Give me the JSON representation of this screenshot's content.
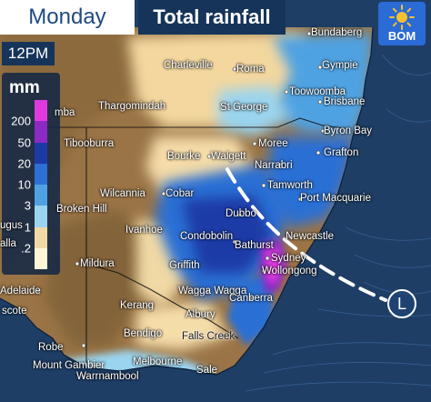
{
  "header": {
    "day": "Monday",
    "title": "Total rainfall",
    "time": "12PM"
  },
  "logo": {
    "text": "BOM",
    "icon": "sun-icon"
  },
  "legend": {
    "unit": "mm",
    "ticks": [
      "200",
      "50",
      "20",
      "10",
      "3",
      "1",
      ".2"
    ],
    "colors": [
      "#e03adf",
      "#8c2bc3",
      "#1c3aa6",
      "#2c70d4",
      "#4fa2e2",
      "#9ad4ef",
      "#f1d9a5",
      "#fff6da"
    ]
  },
  "map": {
    "pressure_system": "L",
    "towns": [
      {
        "name": "Bundaberg",
        "tone": "light"
      },
      {
        "name": "Charleville",
        "tone": "light"
      },
      {
        "name": "Roma",
        "tone": "light"
      },
      {
        "name": "Gympie",
        "tone": "light"
      },
      {
        "name": "Toowoomba",
        "tone": "light"
      },
      {
        "name": "Brisbane",
        "tone": "light"
      },
      {
        "name": "Thargomindah",
        "tone": "light"
      },
      {
        "name": "St George",
        "tone": "light"
      },
      {
        "name": "mba",
        "tone": "light"
      },
      {
        "name": "Byron Bay",
        "tone": "light"
      },
      {
        "name": "Tibooburra",
        "tone": "light"
      },
      {
        "name": "Bourke",
        "tone": "light"
      },
      {
        "name": "Walgett",
        "tone": "light"
      },
      {
        "name": "Moree",
        "tone": "light"
      },
      {
        "name": "Narrabri",
        "tone": "light"
      },
      {
        "name": "Grafton",
        "tone": "light"
      },
      {
        "name": "Cobar",
        "tone": "light"
      },
      {
        "name": "Tamworth",
        "tone": "light"
      },
      {
        "name": "Port Macquarie",
        "tone": "light"
      },
      {
        "name": "Wilcannia",
        "tone": "light"
      },
      {
        "name": "Broken Hill",
        "tone": "light"
      },
      {
        "name": "Dubbo",
        "tone": "light"
      },
      {
        "name": "Ivanhoe",
        "tone": "light"
      },
      {
        "name": "Condobolin",
        "tone": "light"
      },
      {
        "name": "Newcastle",
        "tone": "light"
      },
      {
        "name": "ugus",
        "tone": "light"
      },
      {
        "name": "alla",
        "tone": "light"
      },
      {
        "name": "Bathurst",
        "tone": "light"
      },
      {
        "name": "Sydney",
        "tone": "light"
      },
      {
        "name": "Wollongong",
        "tone": "light"
      },
      {
        "name": "Mildura",
        "tone": "light"
      },
      {
        "name": "Griffith",
        "tone": "light"
      },
      {
        "name": "Adelaide",
        "tone": "light"
      },
      {
        "name": "Wagga Wagga",
        "tone": "light"
      },
      {
        "name": "Canberra",
        "tone": "light"
      },
      {
        "name": "scote",
        "tone": "light"
      },
      {
        "name": "Kerang",
        "tone": "light"
      },
      {
        "name": "Albury",
        "tone": "light"
      },
      {
        "name": "Bendigo",
        "tone": "light"
      },
      {
        "name": "Falls Creek",
        "tone": "dark"
      },
      {
        "name": "Robe",
        "tone": "light"
      },
      {
        "name": "Mount Gambier",
        "tone": "light"
      },
      {
        "name": "Melbourne",
        "tone": "light"
      },
      {
        "name": "Warrnambool",
        "tone": "light"
      },
      {
        "name": "Sale",
        "tone": "light"
      }
    ]
  }
}
